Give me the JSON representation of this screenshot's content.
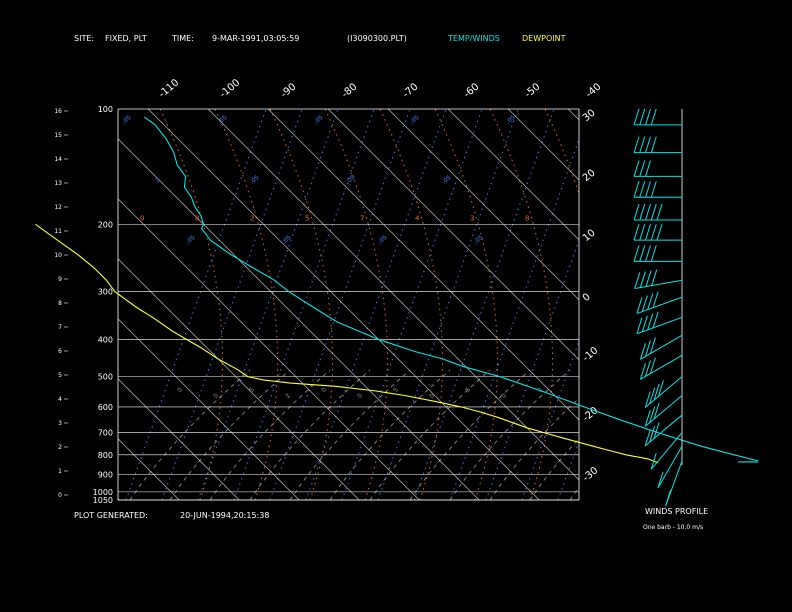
{
  "header": {
    "site_label": "SITE:",
    "site_value": "FIXED, PLT",
    "time_label": "TIME:",
    "time_value": "9-MAR-1991,03:05:59",
    "file_name": "(I3090300.PLT)",
    "legend_temp_winds": "TEMP/WINDS",
    "legend_dewpoint": "DEWPOINT"
  },
  "footer": {
    "plot_generated_label": "PLOT GENERATED:",
    "plot_generated_value": "20-JUN-1994,20:15:38"
  },
  "winds_panel": {
    "title": "WINDS PROFILE",
    "note": "One barb - 10.0 m/s"
  },
  "colors": {
    "background": "#000000",
    "temp_winds": "#00e5e5",
    "dewpoint": "#ffff33",
    "grid": "#ffffff",
    "mixing_ratio": "#4a86ff",
    "dry_adiabat": "#e06a2a",
    "moist_adiabat": "#9a9a9a"
  },
  "chart_data": {
    "type": "line",
    "pressure_labels": [
      100,
      200,
      300,
      400,
      500,
      600,
      700,
      800,
      900,
      1000,
      1050
    ],
    "height_km_labels": [
      16,
      15,
      14,
      13,
      12,
      11,
      10,
      9,
      8,
      7,
      6,
      5,
      4,
      3,
      2,
      1,
      0
    ],
    "top_temperature_labels": [
      -110,
      -100,
      -90,
      -80,
      -70,
      -60,
      -50,
      -40
    ],
    "right_temperature_labels": [
      -30,
      -20,
      -10,
      0,
      10,
      20,
      30
    ],
    "right_temperature_values": [
      -30,
      -20,
      -10,
      0,
      10,
      20,
      30
    ],
    "mixing_ratio_labels": [
      ".05",
      ".2",
      ".05",
      ".05",
      ".05",
      ".05",
      ".05",
      ".05",
      ".05",
      ".05",
      ".05",
      ".05",
      ".05"
    ],
    "dry_adiabat_labels": [
      "0",
      "8",
      "2",
      "5",
      "7",
      "4",
      "3",
      "8"
    ],
    "moist_adiabat_labels": [
      "0",
      "0",
      "5",
      "2",
      "0",
      "0",
      "5",
      "0",
      "5",
      "0",
      "0"
    ],
    "series": [
      {
        "name": "TEMP/WINDS",
        "points": [
          {
            "p": 830,
            "t": 3.0
          },
          {
            "p": 800,
            "t": 0.0
          },
          {
            "p": 760,
            "t": -4.0
          },
          {
            "p": 700,
            "t": -9.0
          },
          {
            "p": 650,
            "t": -13.0
          },
          {
            "p": 600,
            "t": -17.0
          },
          {
            "p": 550,
            "t": -21.0
          },
          {
            "p": 500,
            "t": -26.0
          },
          {
            "p": 470,
            "t": -30.5
          },
          {
            "p": 450,
            "t": -32.5
          },
          {
            "p": 430,
            "t": -36.0
          },
          {
            "p": 400,
            "t": -40.0
          },
          {
            "p": 360,
            "t": -44.0
          },
          {
            "p": 330,
            "t": -45.5
          },
          {
            "p": 300,
            "t": -47.0
          },
          {
            "p": 280,
            "t": -47.5
          },
          {
            "p": 260,
            "t": -49.0
          },
          {
            "p": 240,
            "t": -50.5
          },
          {
            "p": 220,
            "t": -51.5
          },
          {
            "p": 205,
            "t": -51.0
          },
          {
            "p": 200,
            "t": -50.0
          },
          {
            "p": 190,
            "t": -49.0
          },
          {
            "p": 180,
            "t": -48.5
          },
          {
            "p": 170,
            "t": -47.5
          },
          {
            "p": 160,
            "t": -47.0
          },
          {
            "p": 150,
            "t": -45.0
          },
          {
            "p": 140,
            "t": -44.5
          },
          {
            "p": 130,
            "t": -43.0
          },
          {
            "p": 120,
            "t": -42.0
          },
          {
            "p": 110,
            "t": -41.5
          },
          {
            "p": 105,
            "t": -42.0
          }
        ]
      },
      {
        "name": "DEWPOINT",
        "points": [
          {
            "p": 840,
            "t": -14.0
          },
          {
            "p": 820,
            "t": -15.0
          },
          {
            "p": 800,
            "t": -18.0
          },
          {
            "p": 780,
            "t": -20.0
          },
          {
            "p": 760,
            "t": -22.0
          },
          {
            "p": 740,
            "t": -24.0
          },
          {
            "p": 720,
            "t": -26.0
          },
          {
            "p": 700,
            "t": -28.0
          },
          {
            "p": 680,
            "t": -30.0
          },
          {
            "p": 660,
            "t": -31.5
          },
          {
            "p": 640,
            "t": -33.0
          },
          {
            "p": 620,
            "t": -35.0
          },
          {
            "p": 600,
            "t": -37.5
          },
          {
            "p": 580,
            "t": -41.0
          },
          {
            "p": 560,
            "t": -45.0
          },
          {
            "p": 545,
            "t": -49.0
          },
          {
            "p": 530,
            "t": -55.0
          },
          {
            "p": 520,
            "t": -62.0
          },
          {
            "p": 510,
            "t": -66.0
          },
          {
            "p": 500,
            "t": -68.0
          },
          {
            "p": 480,
            "t": -68.5
          },
          {
            "p": 450,
            "t": -70.0
          },
          {
            "p": 420,
            "t": -71.0
          },
          {
            "p": 400,
            "t": -72.0
          },
          {
            "p": 380,
            "t": -73.0
          },
          {
            "p": 350,
            "t": -74.0
          },
          {
            "p": 330,
            "t": -75.0
          },
          {
            "p": 300,
            "t": -76.0
          },
          {
            "p": 280,
            "t": -75.5
          },
          {
            "p": 260,
            "t": -75.5
          },
          {
            "p": 240,
            "t": -76.0
          },
          {
            "p": 220,
            "t": -77.0
          },
          {
            "p": 200,
            "t": -78.0
          }
        ]
      }
    ],
    "winds": [
      {
        "p": 110,
        "speed": 40,
        "dir": 270
      },
      {
        "p": 130,
        "speed": 35,
        "dir": 270
      },
      {
        "p": 150,
        "speed": 30,
        "dir": 270
      },
      {
        "p": 170,
        "speed": 40,
        "dir": 270
      },
      {
        "p": 195,
        "speed": 50,
        "dir": 270
      },
      {
        "p": 220,
        "speed": 45,
        "dir": 270
      },
      {
        "p": 250,
        "speed": 40,
        "dir": 270
      },
      {
        "p": 280,
        "speed": 40,
        "dir": 260
      },
      {
        "p": 310,
        "speed": 35,
        "dir": 250
      },
      {
        "p": 350,
        "speed": 35,
        "dir": 250
      },
      {
        "p": 390,
        "speed": 30,
        "dir": 240
      },
      {
        "p": 440,
        "speed": 30,
        "dir": 240
      },
      {
        "p": 500,
        "speed": 35,
        "dir": 230
      },
      {
        "p": 560,
        "speed": 25,
        "dir": 230
      },
      {
        "p": 630,
        "speed": 25,
        "dir": 230
      },
      {
        "p": 700,
        "speed": 10,
        "dir": 220
      },
      {
        "p": 760,
        "speed": 10,
        "dir": 210
      },
      {
        "p": 830,
        "speed": 5,
        "dir": 200
      }
    ]
  }
}
